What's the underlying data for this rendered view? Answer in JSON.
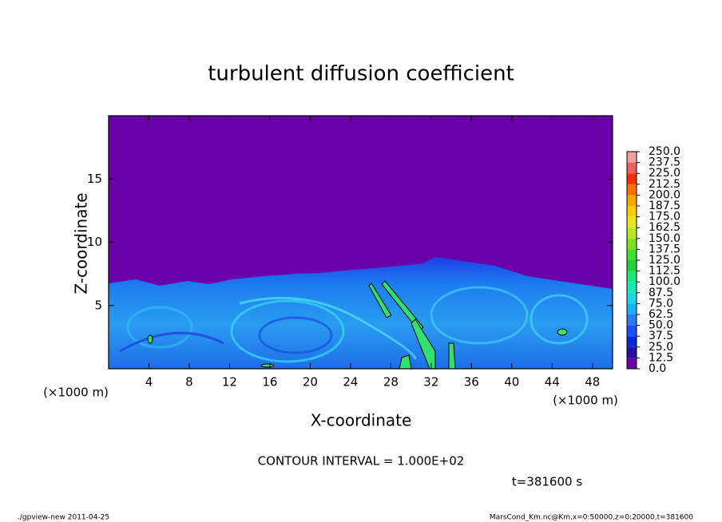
{
  "chart_data": {
    "type": "contour",
    "title": "turbulent diffusion coefficient",
    "x_label": "X-coordinate",
    "y_label": "Z-coordinate",
    "x_unit": "(×1000 m)",
    "y_unit": "(×1000 m)",
    "xlim": [
      0,
      50
    ],
    "xticks": [
      4,
      8,
      12,
      16,
      20,
      24,
      28,
      32,
      36,
      40,
      44,
      48
    ],
    "ylim": [
      0,
      20
    ],
    "yticks": [
      5,
      10,
      15
    ],
    "contour_interval": "CONTOUR INTERVAL = 1.000E+02",
    "time": "t=381600 s",
    "footer_left": "./gpview-new  2011-04-25",
    "footer_right": "MarsCond_Km.nc@Km,x=0:50000,z=0:20000,t=381600",
    "colorbar": {
      "levels": [
        {
          "value": 0,
          "label": "0.0"
        },
        {
          "value": 12.5,
          "label": "12.5"
        },
        {
          "value": 25,
          "label": "25.0"
        },
        {
          "value": 37.5,
          "label": "37.5"
        },
        {
          "value": 50,
          "label": "50.0"
        },
        {
          "value": 62.5,
          "label": "62.5"
        },
        {
          "value": 75,
          "label": "75.0"
        },
        {
          "value": 87.5,
          "label": "87.5"
        },
        {
          "value": 100,
          "label": "100.0"
        },
        {
          "value": 112.5,
          "label": "112.5"
        },
        {
          "value": 125,
          "label": "125.0"
        },
        {
          "value": 137.5,
          "label": "137.5"
        },
        {
          "value": 150,
          "label": "150.0"
        },
        {
          "value": 162.5,
          "label": "162.5"
        },
        {
          "value": 175,
          "label": "175.0"
        },
        {
          "value": 187.5,
          "label": "187.5"
        },
        {
          "value": 200,
          "label": "200.0"
        },
        {
          "value": 212.5,
          "label": "212.5"
        },
        {
          "value": 225,
          "label": "225.0"
        },
        {
          "value": 237.5,
          "label": "237.5"
        },
        {
          "value": 250,
          "label": "250.0"
        }
      ],
      "colors": [
        "#6a00a8",
        "#2a10a0",
        "#0a28d8",
        "#1e50ff",
        "#2a7cf5",
        "#19b0f5",
        "#20d4e4",
        "#18e8b8",
        "#20e878",
        "#20d040",
        "#40e030",
        "#80e020",
        "#b8e820",
        "#e8e820",
        "#f8d000",
        "#f8a800",
        "#f87000",
        "#f03000",
        "#f06060",
        "#f0a0a0"
      ]
    }
  }
}
